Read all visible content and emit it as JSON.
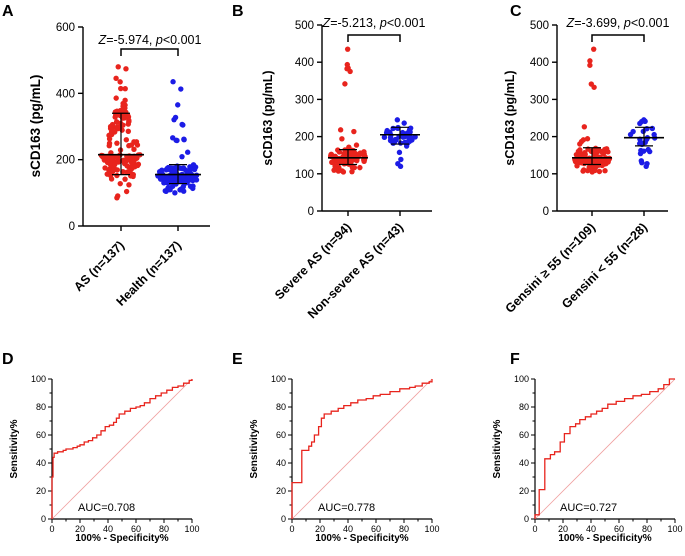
{
  "chart_data": [
    {
      "panel": "A",
      "type": "scatter",
      "ylabel": "sCD163 (pg/mL)",
      "ylim": [
        0,
        600
      ],
      "yticks": [
        0,
        200,
        400,
        600
      ],
      "categories": [
        "AS (n=137)",
        "Health (n=137)"
      ],
      "groups": [
        {
          "name": "AS (n=137)",
          "n": 137,
          "color": "#e8241d",
          "median": 215,
          "q1": 155,
          "q3": 340,
          "min": 85,
          "max": 480
        },
        {
          "name": "Health (n=137)",
          "n": 137,
          "color": "#1c1ce6",
          "median": 155,
          "q1": 128,
          "q3": 185,
          "min": 100,
          "max": 435
        }
      ],
      "stat": {
        "z": "Z",
        "rest": "=-5.974, ",
        "p": "p",
        "value": "<0.001"
      }
    },
    {
      "panel": "B",
      "type": "scatter",
      "ylabel": "sCD163 (pg/mL)",
      "ylim": [
        0,
        500
      ],
      "yticks": [
        0,
        100,
        200,
        300,
        400,
        500
      ],
      "categories": [
        "Severe AS (n=94)",
        "Non-severe AS (n=43)"
      ],
      "groups": [
        {
          "name": "Severe AS (n=94)",
          "n": 94,
          "color": "#e8241d",
          "median": 143,
          "q1": 125,
          "q3": 165,
          "min": 105,
          "max": 435
        },
        {
          "name": "Non-severe AS (n=43)",
          "n": 43,
          "color": "#1c1ce6",
          "median": 205,
          "q1": 180,
          "q3": 225,
          "min": 120,
          "max": 245
        }
      ],
      "stat": {
        "z": "Z",
        "rest": "=-5.213, ",
        "p": "p",
        "value": "<0.001"
      }
    },
    {
      "panel": "C",
      "type": "scatter",
      "ylabel": "sCD163 (pg/mL)",
      "ylim": [
        0,
        500
      ],
      "yticks": [
        0,
        100,
        200,
        300,
        400,
        500
      ],
      "categories": [
        "Gensini ≥ 55 (n=109)",
        "Gensini < 55 (n=28)"
      ],
      "groups": [
        {
          "name": "Gensini ≥ 55 (n=109)",
          "n": 109,
          "color": "#e8241d",
          "median": 143,
          "q1": 125,
          "q3": 170,
          "min": 105,
          "max": 435
        },
        {
          "name": "Gensini < 55 (n=28)",
          "n": 28,
          "color": "#1c1ce6",
          "median": 197,
          "q1": 175,
          "q3": 225,
          "min": 120,
          "max": 245
        }
      ],
      "stat": {
        "z": "Z",
        "rest": "=-3.699, ",
        "p": "p",
        "value": "<0.001"
      }
    },
    {
      "panel": "D",
      "type": "line",
      "xlabel": "100% - Specificity%",
      "ylabel": "Sensitivity%",
      "xlim": [
        0,
        100
      ],
      "ylim": [
        0,
        100
      ],
      "ticks": [
        0,
        10,
        20,
        30,
        40,
        50,
        60,
        70,
        80,
        90,
        100
      ],
      "auc": "AUC=0.708",
      "roc": [
        [
          0,
          0
        ],
        [
          0,
          30
        ],
        [
          0.7,
          30
        ],
        [
          0.7,
          44
        ],
        [
          1.5,
          44
        ],
        [
          1.5,
          47
        ],
        [
          4,
          47
        ],
        [
          4,
          48
        ],
        [
          8,
          48
        ],
        [
          8,
          49
        ],
        [
          10,
          49
        ],
        [
          10,
          50
        ],
        [
          15,
          50
        ],
        [
          15,
          51
        ],
        [
          18,
          51
        ],
        [
          18,
          52
        ],
        [
          20,
          52
        ],
        [
          20,
          53
        ],
        [
          23,
          53
        ],
        [
          23,
          55
        ],
        [
          26,
          55
        ],
        [
          26,
          56
        ],
        [
          29,
          56
        ],
        [
          29,
          58
        ],
        [
          32,
          58
        ],
        [
          32,
          60
        ],
        [
          35,
          60
        ],
        [
          35,
          63
        ],
        [
          38,
          63
        ],
        [
          38,
          66
        ],
        [
          41,
          66
        ],
        [
          41,
          67
        ],
        [
          44,
          67
        ],
        [
          44,
          69
        ],
        [
          46,
          69
        ],
        [
          46,
          72
        ],
        [
          48,
          72
        ],
        [
          48,
          75
        ],
        [
          52,
          75
        ],
        [
          52,
          77
        ],
        [
          56,
          77
        ],
        [
          56,
          79
        ],
        [
          60,
          79
        ],
        [
          60,
          80
        ],
        [
          63,
          80
        ],
        [
          63,
          81
        ],
        [
          66,
          81
        ],
        [
          66,
          83
        ],
        [
          70,
          83
        ],
        [
          70,
          86
        ],
        [
          74,
          86
        ],
        [
          74,
          88
        ],
        [
          78,
          88
        ],
        [
          78,
          90
        ],
        [
          82,
          90
        ],
        [
          82,
          92
        ],
        [
          86,
          92
        ],
        [
          86,
          94
        ],
        [
          90,
          94
        ],
        [
          90,
          95
        ],
        [
          94,
          95
        ],
        [
          94,
          97
        ],
        [
          98,
          97
        ],
        [
          98,
          99
        ],
        [
          100,
          99
        ],
        [
          100,
          100
        ]
      ]
    },
    {
      "panel": "E",
      "type": "line",
      "xlabel": "100% - Specificity%",
      "ylabel": "Sensitivity%",
      "xlim": [
        0,
        100
      ],
      "ylim": [
        0,
        100
      ],
      "ticks": [
        0,
        10,
        20,
        30,
        40,
        50,
        60,
        70,
        80,
        90,
        100
      ],
      "auc": "AUC=0.778",
      "roc": [
        [
          0,
          0
        ],
        [
          0,
          26
        ],
        [
          7,
          26
        ],
        [
          7,
          49
        ],
        [
          12,
          49
        ],
        [
          12,
          52
        ],
        [
          14,
          52
        ],
        [
          14,
          55
        ],
        [
          16,
          55
        ],
        [
          16,
          60
        ],
        [
          19,
          60
        ],
        [
          19,
          66
        ],
        [
          21,
          66
        ],
        [
          21,
          72
        ],
        [
          23,
          72
        ],
        [
          23,
          75
        ],
        [
          28,
          75
        ],
        [
          28,
          77
        ],
        [
          33,
          77
        ],
        [
          33,
          79
        ],
        [
          37,
          79
        ],
        [
          37,
          81
        ],
        [
          42,
          81
        ],
        [
          42,
          83
        ],
        [
          47,
          83
        ],
        [
          47,
          85
        ],
        [
          53,
          85
        ],
        [
          53,
          86
        ],
        [
          58,
          86
        ],
        [
          58,
          88
        ],
        [
          63,
          88
        ],
        [
          63,
          89
        ],
        [
          70,
          89
        ],
        [
          70,
          91
        ],
        [
          77,
          91
        ],
        [
          77,
          93
        ],
        [
          84,
          93
        ],
        [
          84,
          94
        ],
        [
          88,
          94
        ],
        [
          88,
          95
        ],
        [
          93,
          95
        ],
        [
          93,
          97
        ],
        [
          98,
          97
        ],
        [
          98,
          98
        ],
        [
          100,
          98
        ],
        [
          100,
          100
        ]
      ]
    },
    {
      "panel": "F",
      "type": "line",
      "xlabel": "100% - Specificity%",
      "ylabel": "Sensitivity%",
      "xlim": [
        0,
        100
      ],
      "ylim": [
        0,
        100
      ],
      "ticks": [
        0,
        10,
        20,
        30,
        40,
        50,
        60,
        70,
        80,
        90,
        100
      ],
      "auc": "AUC=0.727",
      "roc": [
        [
          0,
          0
        ],
        [
          0,
          3
        ],
        [
          3,
          3
        ],
        [
          3,
          21
        ],
        [
          7,
          21
        ],
        [
          7,
          43
        ],
        [
          11,
          43
        ],
        [
          11,
          46
        ],
        [
          14,
          46
        ],
        [
          14,
          48
        ],
        [
          18,
          48
        ],
        [
          18,
          55
        ],
        [
          21,
          55
        ],
        [
          21,
          61
        ],
        [
          25,
          61
        ],
        [
          25,
          66
        ],
        [
          29,
          66
        ],
        [
          29,
          68
        ],
        [
          32,
          68
        ],
        [
          32,
          71
        ],
        [
          36,
          71
        ],
        [
          36,
          73
        ],
        [
          40,
          73
        ],
        [
          40,
          75
        ],
        [
          44,
          75
        ],
        [
          44,
          77
        ],
        [
          48,
          77
        ],
        [
          48,
          79
        ],
        [
          52,
          79
        ],
        [
          52,
          82
        ],
        [
          58,
          82
        ],
        [
          58,
          84
        ],
        [
          64,
          84
        ],
        [
          64,
          86
        ],
        [
          70,
          86
        ],
        [
          70,
          88
        ],
        [
          76,
          88
        ],
        [
          76,
          89
        ],
        [
          82,
          89
        ],
        [
          82,
          91
        ],
        [
          88,
          91
        ],
        [
          88,
          93
        ],
        [
          92,
          93
        ],
        [
          92,
          96
        ],
        [
          96,
          96
        ],
        [
          96,
          100
        ],
        [
          100,
          100
        ]
      ]
    }
  ]
}
